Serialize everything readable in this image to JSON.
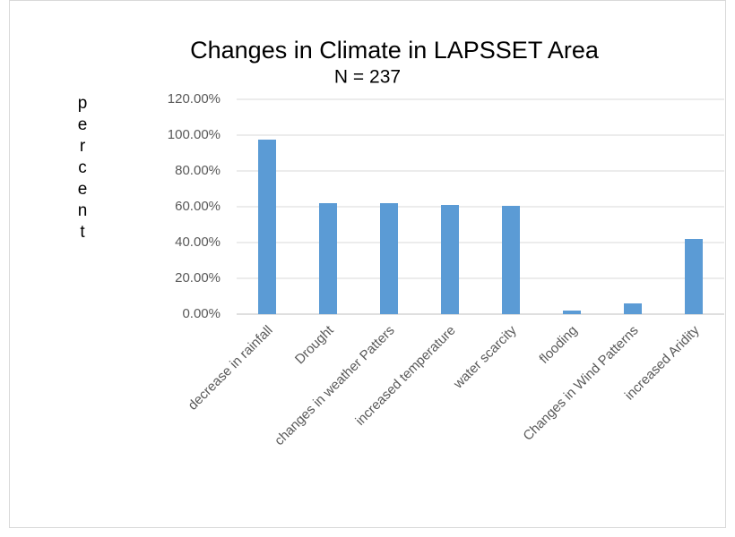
{
  "chart_data": {
    "type": "bar",
    "title": "Changes in  Climate  in LAPSSET Area",
    "subtitle": "N = 237",
    "y_label": "percent",
    "categories": [
      "decrease in rainfall",
      "Drought",
      "changes in weather Patters",
      "increased temperature",
      "water scarcity",
      "flooding",
      "Changes in Wind Patterns",
      "increased Aridity"
    ],
    "values": [
      97.5,
      62,
      62,
      61,
      60.5,
      2,
      6,
      42
    ],
    "color": "#5b9bd5",
    "ylim": [
      0,
      120
    ],
    "yticks": [
      {
        "value": 0,
        "label": "0.00%"
      },
      {
        "value": 20,
        "label": "20.00%"
      },
      {
        "value": 40,
        "label": "40.00%"
      },
      {
        "value": 60,
        "label": "60.00%"
      },
      {
        "value": 80,
        "label": "80.00%"
      },
      {
        "value": 100,
        "label": "100.00%"
      },
      {
        "value": 120,
        "label": "120.00%"
      }
    ],
    "grid": true
  }
}
